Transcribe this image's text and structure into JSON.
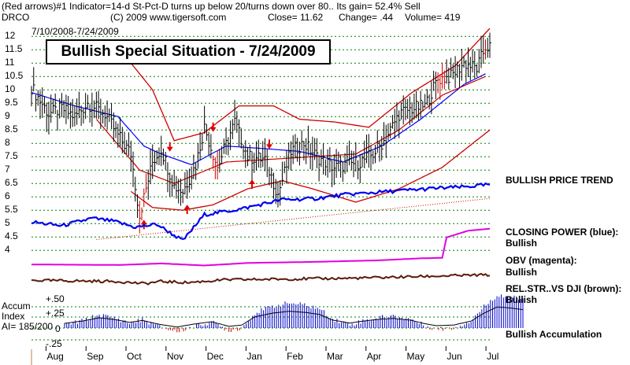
{
  "header": {
    "line1": "(Red arrows)#1 Indicator=14-d St-Pct-D turns up below 20/turns down over 80.. Its gain= 52.4% Sell",
    "ticker": "DRCO",
    "copyright": "(C) 2009 www.tigersoft.com",
    "close": "Close=  11.62",
    "change": "Change= .44",
    "volume": "Volume= 419",
    "date_range": "7/10/2008-7/24/2009"
  },
  "headline": "Bullish Special Situation - 7/24/2009",
  "side_labels": {
    "price_trend": "BULLISH PRICE TREND",
    "closing_power": "CLOSING POWER (blue):",
    "closing_power_status": "Bullish",
    "obv": "OBV (magenta):",
    "obv_status": "Bullish",
    "rel_str": "REL.STR..VS DJI (brown):",
    "rel_str_status": "Bullish",
    "accumulation": "Bullish Accumulation"
  },
  "accum": {
    "title1": "Accum",
    "title2": "Index",
    "ai": "AI= 185/200",
    "ticks": [
      "+.50",
      "+.25",
      "0",
      "-.25"
    ]
  },
  "colors": {
    "price_bars": "#000000",
    "bollinger": "#cc0000",
    "ma_21": "#0000ff",
    "ma_50": "#cc0000",
    "closing_power": "#0000ee",
    "obv": "#e000e0",
    "rel_str": "#5a1a0a",
    "accum_bars": "#0000cc",
    "accum_negative": "#cc0000",
    "arrows": "#dd0000",
    "grid": "#008000"
  },
  "chart_data": {
    "type": "bar",
    "y_ticks": [
      "12",
      "11.5",
      "11",
      "10.5",
      "10",
      "9.5",
      "9",
      "8.5",
      "8",
      "7.5",
      "7",
      "6.5",
      "6",
      "5.5",
      "5",
      "4.5",
      "4"
    ],
    "ylim": [
      4,
      12
    ],
    "x_labels": [
      "Aug",
      "Sep",
      "Oct",
      "Nov",
      "Dec",
      "Jan",
      "Feb",
      "Mar",
      "Apr",
      "May",
      "Jun",
      "Jul"
    ],
    "price_keyframes": [
      [
        0,
        10.1
      ],
      [
        8,
        9.1
      ],
      [
        14,
        9.3
      ],
      [
        20,
        9.0
      ],
      [
        26,
        9.5
      ],
      [
        34,
        9.1
      ],
      [
        40,
        8.3
      ],
      [
        46,
        7.6
      ],
      [
        50,
        5.3
      ],
      [
        56,
        7.3
      ],
      [
        60,
        7.8
      ],
      [
        66,
        6.4
      ],
      [
        70,
        6.2
      ],
      [
        76,
        7.2
      ],
      [
        80,
        8.6
      ],
      [
        86,
        7.1
      ],
      [
        94,
        8.8
      ],
      [
        100,
        7.5
      ],
      [
        108,
        7.4
      ],
      [
        114,
        6.1
      ],
      [
        120,
        7.7
      ],
      [
        126,
        8.0
      ],
      [
        132,
        7.5
      ],
      [
        140,
        7.1
      ],
      [
        146,
        7.2
      ],
      [
        152,
        7.3
      ],
      [
        158,
        7.6
      ],
      [
        164,
        8.2
      ],
      [
        170,
        9.1
      ],
      [
        176,
        9.3
      ],
      [
        182,
        9.4
      ],
      [
        188,
        10.4
      ],
      [
        194,
        10.5
      ],
      [
        200,
        11.0
      ],
      [
        206,
        10.8
      ],
      [
        210,
        11.6
      ]
    ],
    "ma21_keyframes": [
      [
        0,
        9.9
      ],
      [
        20,
        9.4
      ],
      [
        40,
        9.0
      ],
      [
        52,
        7.9
      ],
      [
        60,
        7.6
      ],
      [
        74,
        7.2
      ],
      [
        90,
        7.9
      ],
      [
        108,
        7.8
      ],
      [
        124,
        7.7
      ],
      [
        144,
        7.3
      ],
      [
        162,
        7.9
      ],
      [
        180,
        8.9
      ],
      [
        200,
        10.2
      ],
      [
        210,
        10.6
      ]
    ],
    "ma50_keyframes": [
      [
        30,
        8.9
      ],
      [
        50,
        7.0
      ],
      [
        66,
        6.5
      ],
      [
        90,
        7.3
      ],
      [
        110,
        7.4
      ],
      [
        130,
        7.5
      ],
      [
        150,
        7.6
      ],
      [
        170,
        8.5
      ],
      [
        190,
        9.8
      ],
      [
        210,
        10.5
      ]
    ],
    "upper_band_keyframes": [
      [
        46,
        11.0
      ],
      [
        56,
        10.0
      ],
      [
        66,
        8.1
      ],
      [
        80,
        8.4
      ],
      [
        96,
        9.4
      ],
      [
        112,
        9.4
      ],
      [
        124,
        8.9
      ],
      [
        140,
        8.8
      ],
      [
        156,
        8.6
      ],
      [
        176,
        9.9
      ],
      [
        196,
        10.9
      ],
      [
        212,
        12.3
      ]
    ],
    "lower_band_keyframes": [
      [
        46,
        6.2
      ],
      [
        56,
        5.6
      ],
      [
        70,
        5.5
      ],
      [
        84,
        5.7
      ],
      [
        100,
        6.3
      ],
      [
        116,
        6.6
      ],
      [
        130,
        6.3
      ],
      [
        150,
        5.8
      ],
      [
        170,
        6.3
      ],
      [
        190,
        7.1
      ],
      [
        212,
        8.5
      ]
    ],
    "red_arrows": [
      {
        "i": 52,
        "dir": "up"
      },
      {
        "i": 64,
        "dir": "down"
      },
      {
        "i": 72,
        "dir": "up"
      },
      {
        "i": 84,
        "dir": "down"
      },
      {
        "i": 102,
        "dir": "up"
      },
      {
        "i": 110,
        "dir": "down"
      }
    ],
    "closing_power_keyframes": [
      [
        0,
        0.45
      ],
      [
        14,
        0.4
      ],
      [
        28,
        0.5
      ],
      [
        38,
        0.46
      ],
      [
        48,
        0.38
      ],
      [
        58,
        0.42
      ],
      [
        70,
        0.2
      ],
      [
        80,
        0.55
      ],
      [
        96,
        0.62
      ],
      [
        116,
        0.75
      ],
      [
        130,
        0.76
      ],
      [
        146,
        0.82
      ],
      [
        166,
        0.86
      ],
      [
        186,
        0.9
      ],
      [
        200,
        0.92
      ],
      [
        212,
        0.95
      ]
    ],
    "obv_keyframes": [
      [
        0,
        0.12
      ],
      [
        40,
        0.11
      ],
      [
        60,
        0.14
      ],
      [
        80,
        0.1
      ],
      [
        100,
        0.15
      ],
      [
        130,
        0.17
      ],
      [
        160,
        0.2
      ],
      [
        180,
        0.24
      ],
      [
        190,
        0.25
      ],
      [
        192,
        0.65
      ],
      [
        202,
        0.78
      ],
      [
        212,
        0.82
      ]
    ],
    "rel_str_keyframes": [
      [
        0,
        0.4
      ],
      [
        20,
        0.35
      ],
      [
        40,
        0.3
      ],
      [
        52,
        0.1
      ],
      [
        60,
        0.3
      ],
      [
        72,
        0.2
      ],
      [
        90,
        0.45
      ],
      [
        110,
        0.5
      ],
      [
        130,
        0.55
      ],
      [
        150,
        0.6
      ],
      [
        170,
        0.7
      ],
      [
        190,
        0.8
      ],
      [
        212,
        0.9
      ]
    ],
    "accum_keyframes": [
      [
        0,
        0.05
      ],
      [
        8,
        0.12
      ],
      [
        16,
        0.22
      ],
      [
        24,
        0.16
      ],
      [
        30,
        0.08
      ],
      [
        36,
        0.14
      ],
      [
        44,
        0.02
      ],
      [
        52,
        -0.06
      ],
      [
        60,
        0.03
      ],
      [
        68,
        0.1
      ],
      [
        76,
        -0.04
      ],
      [
        82,
        0.0
      ],
      [
        88,
        0.25
      ],
      [
        96,
        0.36
      ],
      [
        104,
        0.42
      ],
      [
        112,
        0.38
      ],
      [
        118,
        0.32
      ],
      [
        124,
        0.15
      ],
      [
        132,
        0.06
      ],
      [
        138,
        0.12
      ],
      [
        146,
        0.18
      ],
      [
        152,
        0.2
      ],
      [
        160,
        0.15
      ],
      [
        166,
        0.05
      ],
      [
        172,
        -0.02
      ],
      [
        180,
        0.0
      ],
      [
        188,
        0.12
      ],
      [
        194,
        0.36
      ],
      [
        200,
        0.55
      ],
      [
        206,
        0.52
      ],
      [
        212,
        0.47
      ]
    ]
  }
}
